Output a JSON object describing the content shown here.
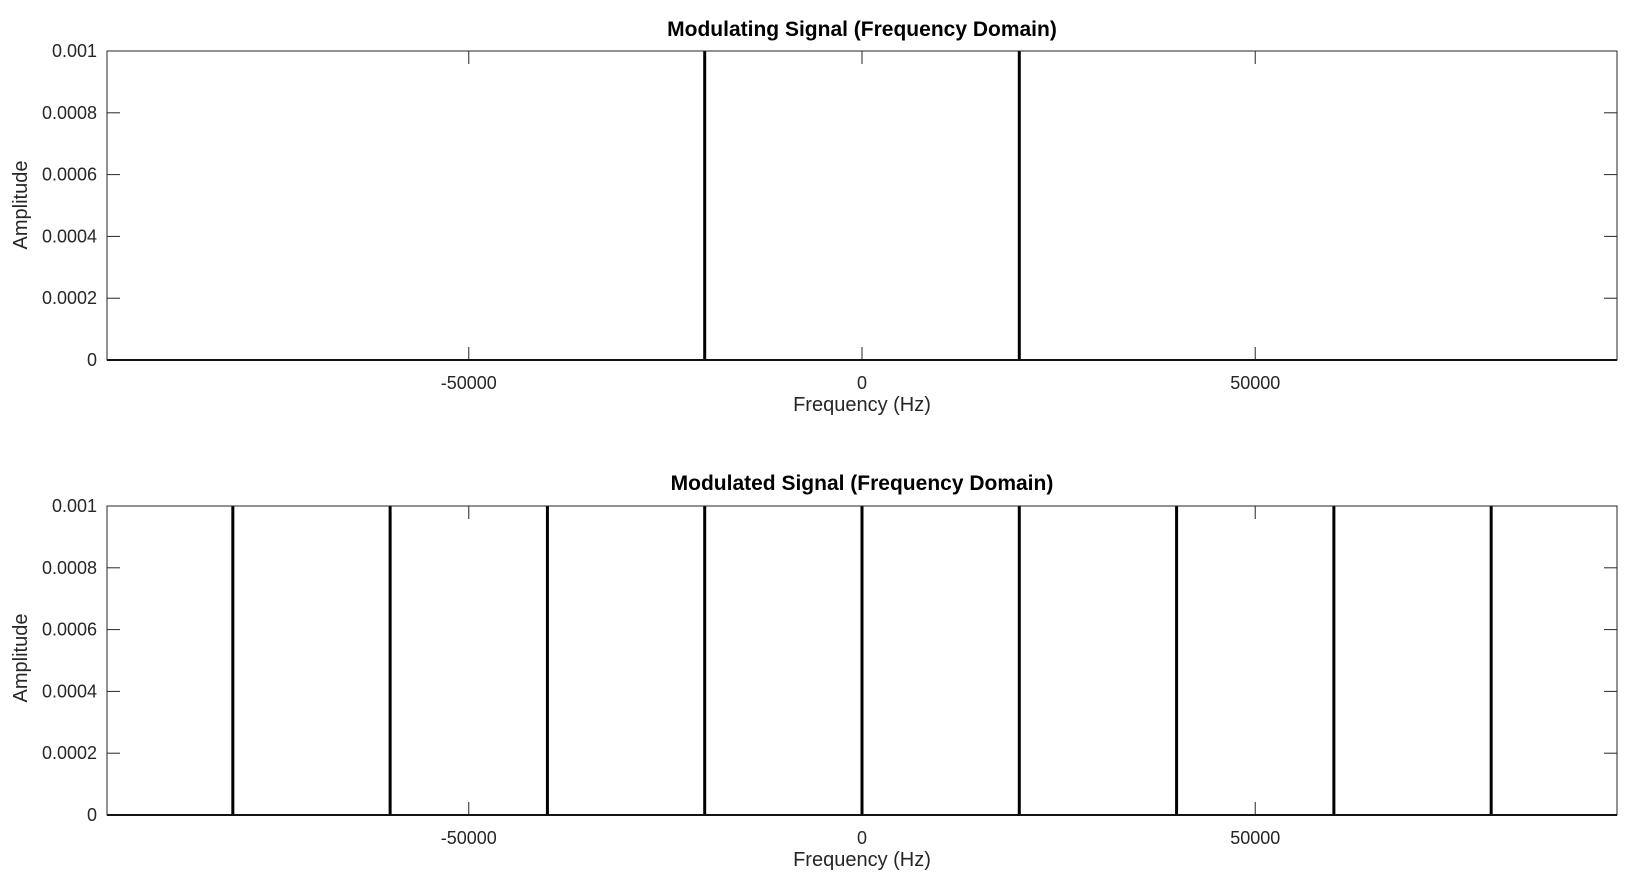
{
  "chart_data": [
    {
      "type": "line",
      "title": "Modulating Signal (Frequency Domain)",
      "xlabel": "Frequency (Hz)",
      "ylabel": "Amplitude",
      "xlim": [
        -96000,
        96000
      ],
      "ylim": [
        0,
        0.001
      ],
      "xticks": [
        -50000,
        0,
        50000
      ],
      "xtick_labels": [
        "-50000",
        "0",
        "50000"
      ],
      "yticks": [
        0,
        0.0002,
        0.0004,
        0.0006,
        0.0008,
        0.001
      ],
      "ytick_labels": [
        "0",
        "0.0002",
        "0.0004",
        "0.0006",
        "0.0008",
        "0.001"
      ],
      "grid": false,
      "series": [
        {
          "x": [
            -20000,
            20000
          ],
          "y": [
            0.001,
            0.001
          ]
        }
      ]
    },
    {
      "type": "line",
      "title": "Modulated Signal (Frequency Domain)",
      "xlabel": "Frequency (Hz)",
      "ylabel": "Amplitude",
      "xlim": [
        -96000,
        96000
      ],
      "ylim": [
        0,
        0.001
      ],
      "xticks": [
        -50000,
        0,
        50000
      ],
      "xtick_labels": [
        "-50000",
        "0",
        "50000"
      ],
      "yticks": [
        0,
        0.0002,
        0.0004,
        0.0006,
        0.0008,
        0.001
      ],
      "ytick_labels": [
        "0",
        "0.0002",
        "0.0004",
        "0.0006",
        "0.0008",
        "0.001"
      ],
      "grid": false,
      "series": [
        {
          "x": [
            -80000,
            -60000,
            -40000,
            -20000,
            0,
            20000,
            40000,
            60000,
            80000
          ],
          "y": [
            0.001,
            0.001,
            0.001,
            0.001,
            0.001,
            0.001,
            0.001,
            0.001,
            0.001
          ]
        }
      ]
    }
  ]
}
